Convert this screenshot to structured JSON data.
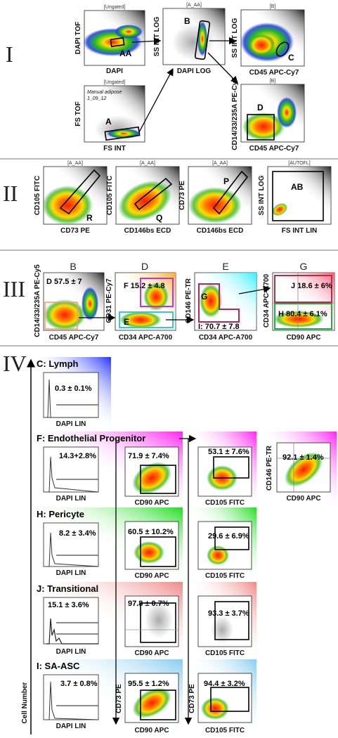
{
  "sections": {
    "I": "I",
    "II": "II",
    "III": "III",
    "IV": "IV"
  },
  "colors": {
    "blob_hot": "#ff1a00",
    "blob_mid": "#ffcc00",
    "blob_cool": "#22aa22",
    "blob_cold": "#2244dd",
    "scatter_bg": "#555555"
  },
  "sec1": {
    "p1": {
      "title": "[Ungated]",
      "ylabel": "DAPI TOF",
      "xlabel": "DAPI",
      "gate": "AA"
    },
    "p2": {
      "title": "[A_AA]",
      "ylabel": "SS INT LOG",
      "xlabel": "DAPI LOG",
      "gate": "B"
    },
    "p3": {
      "title": "[B]",
      "ylabel": "SS INT LOG",
      "xlabel": "CD45 APC-Cy7",
      "gate": "C"
    },
    "p4": {
      "title": "[Ungated]",
      "ylabel": "FS TOF",
      "xlabel": "FS INT",
      "gate": "A",
      "note1": "Manual adipose",
      "note2": "1_09_12"
    },
    "p5": {
      "title": "[B]",
      "ylabel": "CD14/33/235A PE-Cy5",
      "xlabel": "CD45 APC-Cy7",
      "gate": "D"
    }
  },
  "sec2": {
    "p1": {
      "title": "[A_AA]",
      "ylabel": "CD105 FITC",
      "xlabel": "CD73 PE",
      "gate": "R"
    },
    "p2": {
      "title": "[A_AA]",
      "ylabel": "CD105 FITC",
      "xlabel": "CD146bs ECD",
      "gate": "Q"
    },
    "p3": {
      "title": "[A_AA]",
      "ylabel": "CD73 PE",
      "xlabel": "CD146bs ECD",
      "gate": "P"
    },
    "p4": {
      "title": "[AUTOFL]",
      "ylabel": "SS INT LOG",
      "xlabel": "FS INT LIN",
      "gate": "AB"
    }
  },
  "sec3": {
    "p1": {
      "header": "B",
      "ylabel": "CD14/33/235A PE-Cy5",
      "xlabel": "CD45 APC-Cy7",
      "stat": "D 57.5 ± 7"
    },
    "p2": {
      "header": "D",
      "ylabel": "CD31 PE-Cy7",
      "xlabel": "CD34 APC-A700",
      "stat": "F 15.2 ± 4.8",
      "gate": "E"
    },
    "p3": {
      "header": "E",
      "ylabel": "CD146 PE-TR",
      "xlabel": "CD34 APC-A700",
      "gate": "G",
      "stat": "I: 70.7 ± 7.8"
    },
    "p4": {
      "header": "G",
      "ylabel": "CD34 APC-A700",
      "xlabel": "CD90 APC",
      "statJ": "J 18.6 ± 6%",
      "statH": "H 80.4 ± 6.1%"
    }
  },
  "sec4": {
    "yaxis": "Cell Number",
    "rows": [
      {
        "name": "C: Lymph",
        "hist_label": "DAPI LIN",
        "hist_pct": "0.3 ± 0.1%",
        "color": "#3344ff"
      },
      {
        "name": "F: Endothelial Progenitor",
        "hist_label": "DAPI LIN",
        "hist_pct": "14.3+2.8%",
        "color": "#ff33ee",
        "p1": {
          "pct": "71.9 ± 7.4%",
          "xlabel": "CD90 APC"
        },
        "p2": {
          "pct": "53.1 ± 7.6%",
          "xlabel": "CD105 FITC"
        },
        "p3": {
          "pct": "92.1 ± 1.4%",
          "xlabel": "CD90 APC",
          "ylabel": "CD146 PE-TR"
        }
      },
      {
        "name": "H: Pericyte",
        "hist_label": "DAPI LIN",
        "hist_pct": "8.2 ± 3.4%",
        "color": "#33dd33",
        "p1": {
          "pct": "60.5 ± 10.2%",
          "xlabel": "CD90 APC"
        },
        "p2": {
          "pct": "29.6 ± 6.9%",
          "xlabel": "CD105 FITC"
        }
      },
      {
        "name": "J: Transitional",
        "hist_label": "DAPI LIN",
        "hist_pct": "15.1 ± 3.6%",
        "color": "#ee9999",
        "p1": {
          "pct": "97.8 ± 0.7%",
          "xlabel": "CD90 APC"
        },
        "p2": {
          "pct": "93.3 ± 3.7%",
          "xlabel": "CD105 FITC"
        }
      },
      {
        "name": "I: SA-ASC",
        "hist_label": "DAPI LIN",
        "hist_pct": "3.7 ± 0.8%",
        "color": "#99ccee",
        "p1": {
          "pct": "95.5 ± 1.2%",
          "xlabel": "CD90 APC"
        },
        "p2": {
          "pct": "94.4 ± 3.2%",
          "xlabel": "CD105 FITC"
        }
      }
    ],
    "col_ylabel": "CD73 PE"
  }
}
